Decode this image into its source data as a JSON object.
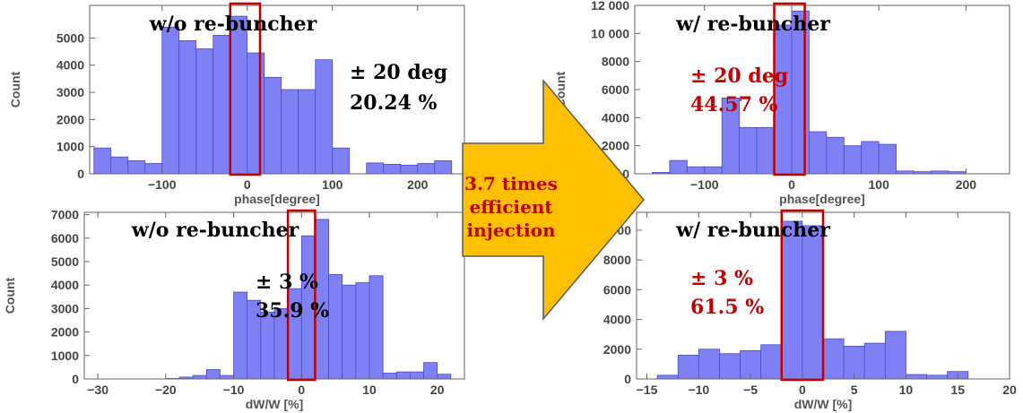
{
  "colors": {
    "bar_fill": "#8080f5",
    "bar_stroke": "#4a4ac8",
    "window": "#c00000",
    "arrow_fill": "#ffc000",
    "arrow_text": "#c00000",
    "ann_black": "#000000",
    "ann_red": "#c00000"
  },
  "arrow": {
    "lines": [
      "3.7 times",
      "efficient",
      "injection"
    ]
  },
  "chart_data": [
    {
      "id": "tl",
      "type": "bar",
      "title": "w/o re-buncher",
      "xlabel": "phase[degree]",
      "ylabel": "Count",
      "xlim": [
        -185,
        255
      ],
      "ylim": [
        0,
        6200
      ],
      "xticks": [
        -100,
        0,
        100,
        200
      ],
      "yticks": [
        0,
        1000,
        2000,
        3000,
        4000,
        5000
      ],
      "bin_start": -180,
      "bin_width": 20,
      "values": [
        950,
        620,
        480,
        380,
        5400,
        4900,
        4600,
        5100,
        5800,
        4450,
        3550,
        3100,
        3100,
        4200,
        950,
        0,
        400,
        350,
        320,
        380,
        480
      ],
      "window": [
        -20,
        15
      ],
      "annotation": [
        "±   20 deg",
        "20.24 %"
      ],
      "annotation_color": "black"
    },
    {
      "id": "tr",
      "type": "bar",
      "title": "w/ re-buncher",
      "xlabel": "phase[degree]",
      "ylabel": "Count",
      "xlim": [
        -180,
        250
      ],
      "ylim": [
        0,
        12000
      ],
      "xticks": [
        -100,
        0,
        100,
        200
      ],
      "yticks": [
        0,
        2000,
        4000,
        6000,
        8000,
        10000,
        12000
      ],
      "ytick_labels": [
        "0",
        "2000",
        "4000",
        "6000",
        "8000",
        "10 000",
        "12 000"
      ],
      "bin_start": -160,
      "bin_width": 20,
      "values": [
        100,
        950,
        500,
        500,
        5400,
        3300,
        3300,
        10600,
        11600,
        3000,
        2600,
        2000,
        2300,
        2100,
        200,
        150,
        200,
        150
      ],
      "window": [
        -20,
        15
      ],
      "annotation": [
        "±   20 deg",
        "44.57 %"
      ],
      "annotation_color": "red"
    },
    {
      "id": "bl",
      "type": "bar",
      "title": "w/o re-buncher",
      "xlabel": "dW/W [%]",
      "ylabel": "Count",
      "xlim": [
        -32,
        24
      ],
      "ylim": [
        0,
        7100
      ],
      "xticks": [
        -30,
        -20,
        -10,
        0,
        10,
        20
      ],
      "yticks": [
        0,
        1000,
        2000,
        3000,
        4000,
        5000,
        6000,
        7000
      ],
      "bin_start": -20,
      "bin_width": 2,
      "values": [
        20,
        80,
        150,
        400,
        150,
        3700,
        3350,
        2850,
        3000,
        3850,
        6100,
        6800,
        4450,
        4000,
        4100,
        4400,
        250,
        300,
        300,
        700,
        200
      ],
      "window": [
        -2,
        2
      ],
      "annotation": [
        "±  3 %",
        "35.9 %"
      ],
      "annotation_color": "black"
    },
    {
      "id": "br",
      "type": "bar",
      "title": "w/ re-buncher",
      "xlabel": "dW/W [%]",
      "ylabel": "",
      "xlim": [
        -16,
        20
      ],
      "ylim": [
        0,
        11200
      ],
      "xticks": [
        -15,
        -10,
        -5,
        0,
        5,
        10,
        15,
        20
      ],
      "yticks": [
        0,
        2000,
        4000,
        6000,
        8000,
        10000
      ],
      "ytick_labels": [
        "0",
        "2000",
        "4000",
        "6000",
        "8000",
        "10 000"
      ],
      "bin_start": -14,
      "bin_width": 2,
      "values": [
        250,
        1600,
        2000,
        1700,
        1900,
        2300,
        10600,
        10300,
        2700,
        2200,
        2400,
        3200,
        300,
        250,
        500
      ],
      "window": [
        -2,
        2
      ],
      "annotation": [
        "±  3 %",
        "61.5 %"
      ],
      "annotation_color": "red"
    }
  ]
}
